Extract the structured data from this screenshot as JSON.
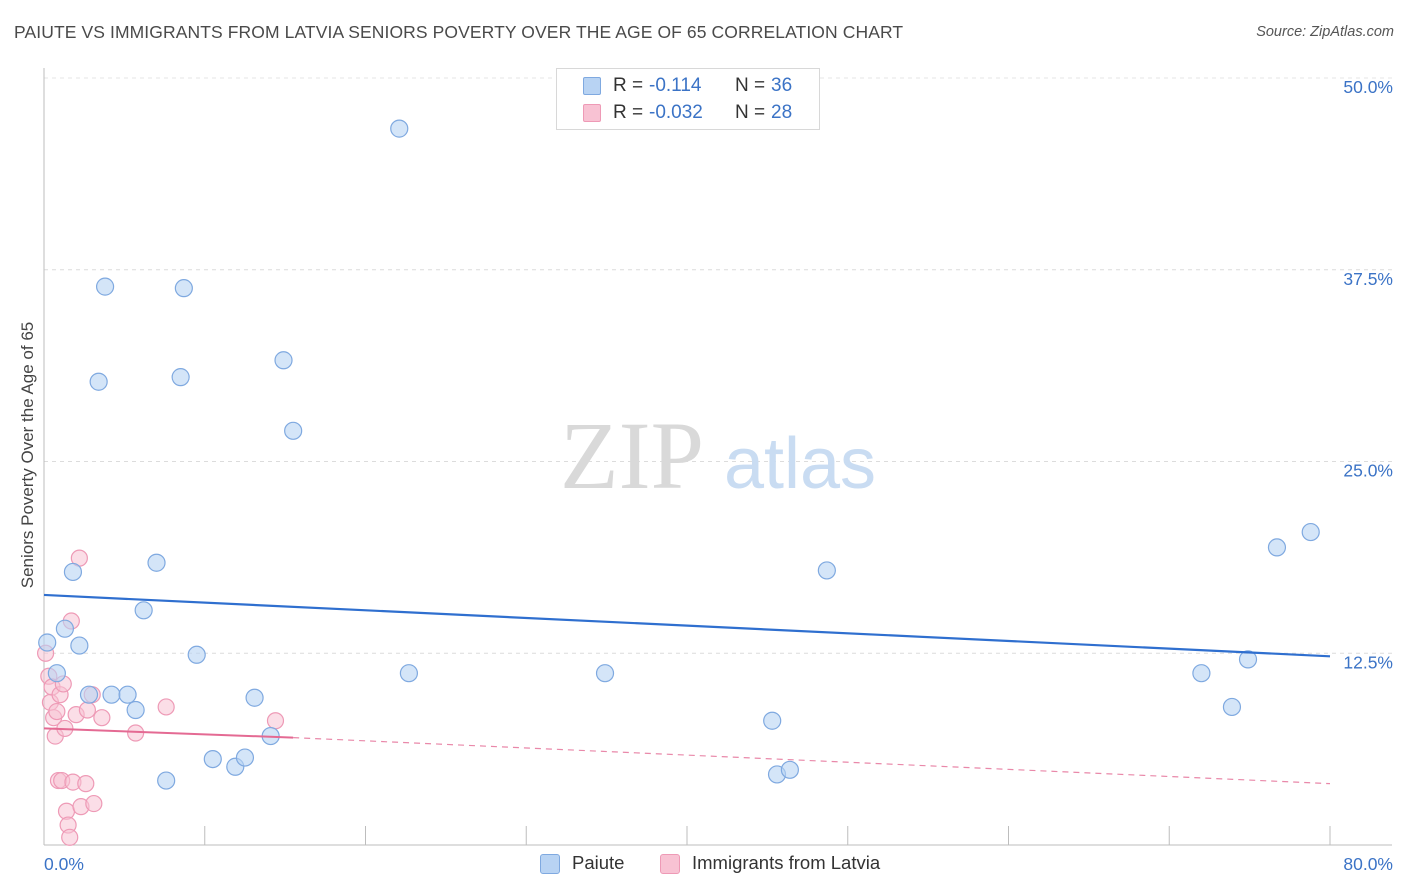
{
  "title": "PAIUTE VS IMMIGRANTS FROM LATVIA SENIORS POVERTY OVER THE AGE OF 65 CORRELATION CHART",
  "source": "Source: ZipAtlas.com",
  "watermark": {
    "zip": "ZIP",
    "atlas": "atlas"
  },
  "legend": {
    "rows": [
      {
        "r_label": "R =",
        "r_value": "-0.114",
        "n_label": "N =",
        "n_value": "36"
      },
      {
        "r_label": "R =",
        "r_value": "-0.032",
        "n_label": "N =",
        "n_value": "28"
      }
    ]
  },
  "bottom_legend": {
    "series1": "Paiute",
    "series2": "Immigrants from Latvia"
  },
  "colors": {
    "paiute_fill": "#b8d3f3",
    "paiute_stroke": "#7fa9e0",
    "paiute_line": "#2f6fcf",
    "latvia_fill": "#f8c2d3",
    "latvia_stroke": "#ee9ab6",
    "latvia_line": "#e46a93",
    "tick_label": "#3b73c6"
  },
  "chart_data": {
    "type": "scatter",
    "title": "PAIUTE VS IMMIGRANTS FROM LATVIA SENIORS POVERTY OVER THE AGE OF 65 CORRELATION CHART",
    "xlabel": "",
    "ylabel": "Seniors Poverty Over the Age of 65",
    "xlim": [
      0,
      80
    ],
    "ylim": [
      0,
      50
    ],
    "x_tick_labels": [
      "0.0%",
      "80.0%"
    ],
    "y_ticks": [
      12.5,
      25.0,
      37.5,
      50.0
    ],
    "y_tick_labels": [
      "12.5%",
      "25.0%",
      "37.5%",
      "50.0%"
    ],
    "grid": true,
    "series": [
      {
        "name": "Paiute",
        "r": -0.114,
        "n": 36,
        "trend": {
          "x": [
            0,
            80
          ],
          "y": [
            16.3,
            12.3
          ]
        },
        "points": [
          [
            0.2,
            13.2
          ],
          [
            0.8,
            11.2
          ],
          [
            1.3,
            14.1
          ],
          [
            1.8,
            17.8
          ],
          [
            2.2,
            13.0
          ],
          [
            2.8,
            9.8
          ],
          [
            3.4,
            30.2
          ],
          [
            3.8,
            36.4
          ],
          [
            4.2,
            9.8
          ],
          [
            5.2,
            9.8
          ],
          [
            5.7,
            8.8
          ],
          [
            6.2,
            15.3
          ],
          [
            7.0,
            18.4
          ],
          [
            7.6,
            4.2
          ],
          [
            8.5,
            30.5
          ],
          [
            8.7,
            36.3
          ],
          [
            9.5,
            12.4
          ],
          [
            10.5,
            5.6
          ],
          [
            11.9,
            5.1
          ],
          [
            12.5,
            5.7
          ],
          [
            13.1,
            9.6
          ],
          [
            14.1,
            7.1
          ],
          [
            14.9,
            31.6
          ],
          [
            15.5,
            27.0
          ],
          [
            22.1,
            46.7
          ],
          [
            22.7,
            11.2
          ],
          [
            34.9,
            11.2
          ],
          [
            45.3,
            8.1
          ],
          [
            45.6,
            4.6
          ],
          [
            46.4,
            4.9
          ],
          [
            48.7,
            17.9
          ],
          [
            72.0,
            11.2
          ],
          [
            73.9,
            9.0
          ],
          [
            74.9,
            12.1
          ],
          [
            76.7,
            19.4
          ],
          [
            78.8,
            20.4
          ]
        ]
      },
      {
        "name": "Immigrants from Latvia",
        "r": -0.032,
        "n": 28,
        "trend_solid": {
          "x": [
            0,
            15.5
          ],
          "y": [
            7.6,
            7.0
          ]
        },
        "trend_dashed": {
          "x": [
            15.5,
            80
          ],
          "y": [
            7.0,
            4.0
          ]
        },
        "points": [
          [
            0.1,
            12.5
          ],
          [
            0.3,
            11.0
          ],
          [
            0.4,
            9.3
          ],
          [
            0.5,
            10.3
          ],
          [
            0.6,
            8.3
          ],
          [
            0.7,
            7.1
          ],
          [
            0.8,
            8.7
          ],
          [
            0.9,
            4.2
          ],
          [
            1.0,
            9.8
          ],
          [
            1.1,
            4.2
          ],
          [
            1.2,
            10.5
          ],
          [
            1.3,
            7.6
          ],
          [
            1.4,
            2.2
          ],
          [
            1.5,
            1.3
          ],
          [
            1.6,
            0.5
          ],
          [
            1.7,
            14.6
          ],
          [
            1.8,
            4.1
          ],
          [
            2.0,
            8.5
          ],
          [
            2.3,
            2.5
          ],
          [
            2.2,
            18.7
          ],
          [
            2.6,
            4.0
          ],
          [
            2.7,
            8.8
          ],
          [
            3.0,
            9.8
          ],
          [
            3.1,
            2.7
          ],
          [
            3.6,
            8.3
          ],
          [
            5.7,
            7.3
          ],
          [
            7.6,
            9.0
          ],
          [
            14.4,
            8.1
          ]
        ]
      }
    ]
  }
}
